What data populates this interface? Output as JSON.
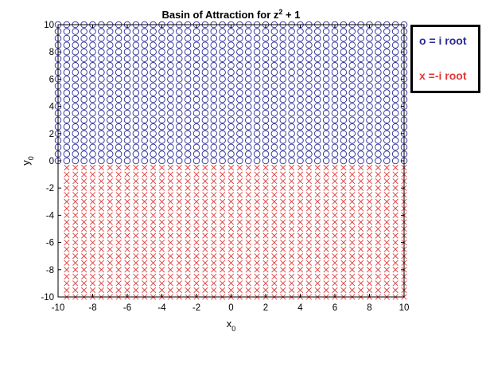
{
  "chart_data": {
    "type": "scatter",
    "title": "Basin of Attraction for z",
    "title_sup": "2",
    "title_rest": " + 1",
    "xlabel": "x",
    "xlabel_sub": "0",
    "ylabel": "y",
    "ylabel_sub": "0",
    "xlim": [
      -10,
      10
    ],
    "ylim": [
      -10,
      10
    ],
    "xticks": [
      -10,
      -8,
      -6,
      -4,
      -2,
      0,
      2,
      4,
      6,
      8,
      10
    ],
    "yticks": [
      -10,
      -8,
      -6,
      -4,
      -2,
      0,
      2,
      4,
      6,
      8,
      10
    ],
    "grid": false,
    "series": [
      {
        "name": "o = i root",
        "marker": "o",
        "color": "#2a2a9a",
        "x_range": [
          -10,
          10
        ],
        "y_range": [
          0,
          10
        ],
        "step": 0.5
      },
      {
        "name": "x = -i root",
        "marker": "x",
        "color": "#e03a3a",
        "x_range": [
          -9.5,
          10
        ],
        "y_range": [
          -10,
          -0.5
        ],
        "step": 0.5
      }
    ],
    "legend": {
      "placement": "outside-right-top",
      "entries": [
        "o = i root",
        "x =-i root"
      ],
      "colors": [
        "#2a2a9a",
        "#e03a3a"
      ]
    }
  }
}
